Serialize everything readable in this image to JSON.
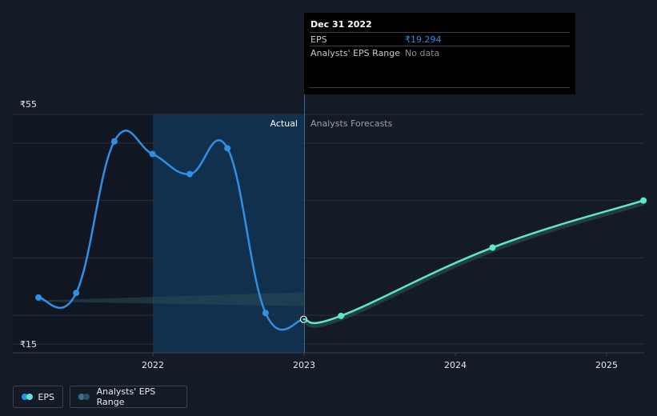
{
  "colors": {
    "background": "#151b26",
    "actual_line": "#2f8fe4",
    "forecast_line": "#5ce8c9",
    "range_band": "#2b4a52",
    "highlight_band": "#10304d",
    "past_shade": "#111722"
  },
  "tooltip": {
    "date": "Dec 31 2022",
    "rows": [
      {
        "label": "EPS",
        "value": "₹19.294",
        "value_color": "#2f8fe4"
      },
      {
        "label": "Analysts' EPS Range",
        "value": "No data",
        "value_color": "#8a8f98"
      }
    ]
  },
  "legend": {
    "items": [
      {
        "label": "EPS",
        "icon": "eps-legend-icon"
      },
      {
        "label": "Analysts' EPS Range",
        "icon": "range-legend-icon"
      }
    ]
  },
  "chart_data": {
    "type": "line",
    "y_axis": {
      "min": 15,
      "max": 55,
      "top_label": "₹55",
      "bottom_label": "₹15"
    },
    "x_axis": {
      "ticks": [
        "2022",
        "2023",
        "2024",
        "2025"
      ]
    },
    "sections": {
      "actual": "Actual",
      "forecast": "Analysts Forecasts"
    },
    "grid": true,
    "series": [
      {
        "name": "EPS",
        "kind": "actual",
        "points": [
          {
            "x": "2021-03-31",
            "y": 23.1
          },
          {
            "x": "2021-06-30",
            "y": 23.9
          },
          {
            "x": "2021-09-30",
            "y": 50.3
          },
          {
            "x": "2021-12-31",
            "y": 48.1
          },
          {
            "x": "2022-03-31",
            "y": 44.6
          },
          {
            "x": "2022-06-30",
            "y": 49.1
          },
          {
            "x": "2022-09-30",
            "y": 20.4
          },
          {
            "x": "2022-12-31",
            "y": 19.294
          }
        ]
      },
      {
        "name": "EPS",
        "kind": "forecast",
        "points": [
          {
            "x": "2022-12-31",
            "y": 19.294
          },
          {
            "x": "2023-03-31",
            "y": 19.9
          },
          {
            "x": "2024-03-31",
            "y": 31.8
          },
          {
            "x": "2025-03-31",
            "y": 40.0
          }
        ]
      }
    ]
  }
}
